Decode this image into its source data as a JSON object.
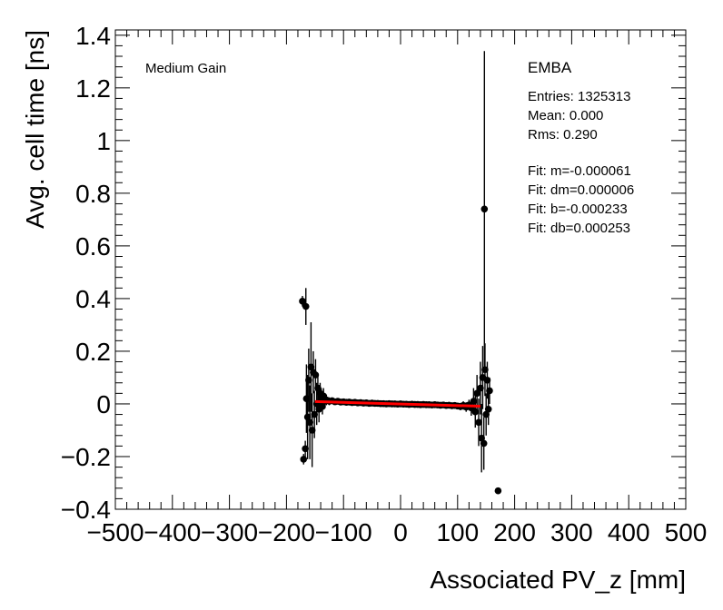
{
  "chart_data": {
    "type": "scatter",
    "title": "",
    "xlabel": "Associated PV_z [mm]",
    "ylabel": "Avg. cell time [ns]",
    "xlim": [
      -500,
      500
    ],
    "ylim": [
      -0.4,
      1.42
    ],
    "xticks": [
      -500,
      -400,
      -300,
      -200,
      -100,
      0,
      100,
      200,
      300,
      400,
      500
    ],
    "xtick_labels": [
      "−500",
      "−400",
      "−300",
      "−200",
      "−100",
      "0",
      "100",
      "200",
      "300",
      "400",
      "500"
    ],
    "yticks": [
      -0.4,
      -0.2,
      0,
      0.2,
      0.4,
      0.6,
      0.8,
      1,
      1.2,
      1.4
    ],
    "ytick_labels": [
      "−0.4",
      "−0.2",
      "0",
      "0.2",
      "0.4",
      "0.6",
      "0.8",
      "1",
      "1.2",
      "1.4"
    ],
    "grid": false,
    "legend": "none",
    "gain_label": "Medium Gain",
    "partition_label": "EMBA",
    "stats": [
      "Entries: 1325313",
      "Mean: 0.000",
      "Rms: 0.290"
    ],
    "fit_text": [
      "Fit: m=-0.000061",
      "Fit: dm=0.000006",
      "Fit: b=-0.000233",
      "Fit: db=0.000253"
    ],
    "fit_line": {
      "m": -6.1e-05,
      "b": -0.000233,
      "x_range": [
        -150,
        140
      ],
      "color": "#ff0000"
    },
    "marker_color": "#000000",
    "outliers": [
      {
        "x": -172,
        "y": 0.39,
        "err": 0.02
      },
      {
        "x": -166,
        "y": 0.37,
        "err": 0.07
      },
      {
        "x": -170,
        "y": -0.21,
        "err": 0.02
      },
      {
        "x": -167,
        "y": -0.17,
        "err": 0.03
      },
      {
        "x": 147,
        "y": 0.74,
        "err": 0.6
      },
      {
        "x": 171,
        "y": -0.33,
        "err": 0.01
      }
    ],
    "points": [
      {
        "x": -165,
        "y": 0.02,
        "err": 0.13
      },
      {
        "x": -163,
        "y": -0.05,
        "err": 0.16
      },
      {
        "x": -161,
        "y": 0.09,
        "err": 0.12
      },
      {
        "x": -159,
        "y": -0.07,
        "err": 0.14
      },
      {
        "x": -157,
        "y": 0.14,
        "err": 0.17
      },
      {
        "x": -155,
        "y": -0.1,
        "err": 0.14
      },
      {
        "x": -153,
        "y": 0.12,
        "err": 0.08
      },
      {
        "x": -151,
        "y": -0.04,
        "err": 0.09
      },
      {
        "x": -149,
        "y": 0.11,
        "err": 0.06
      },
      {
        "x": -147,
        "y": 0.0,
        "err": 0.08
      },
      {
        "x": -145,
        "y": 0.06,
        "err": 0.05
      },
      {
        "x": -143,
        "y": -0.02,
        "err": 0.05
      },
      {
        "x": -141,
        "y": 0.04,
        "err": 0.04
      },
      {
        "x": -139,
        "y": 0.02,
        "err": 0.04
      },
      {
        "x": -137,
        "y": -0.01,
        "err": 0.03
      },
      {
        "x": -135,
        "y": 0.03,
        "err": 0.03
      },
      {
        "x": -133,
        "y": 0.01,
        "err": 0.025
      },
      {
        "x": -130,
        "y": 0.015,
        "err": 0.02
      },
      {
        "x": -125,
        "y": 0.01,
        "err": 0.015
      },
      {
        "x": -120,
        "y": 0.012,
        "err": 0.012
      },
      {
        "x": -115,
        "y": 0.008,
        "err": 0.01
      },
      {
        "x": -110,
        "y": 0.01,
        "err": 0.01
      },
      {
        "x": -105,
        "y": 0.007,
        "err": 0.008
      },
      {
        "x": -100,
        "y": 0.008,
        "err": 0.008
      },
      {
        "x": -95,
        "y": 0.006,
        "err": 0.007
      },
      {
        "x": -90,
        "y": 0.007,
        "err": 0.007
      },
      {
        "x": -85,
        "y": 0.005,
        "err": 0.006
      },
      {
        "x": -80,
        "y": 0.006,
        "err": 0.006
      },
      {
        "x": -75,
        "y": 0.004,
        "err": 0.006
      },
      {
        "x": -70,
        "y": 0.005,
        "err": 0.005
      },
      {
        "x": -65,
        "y": 0.003,
        "err": 0.005
      },
      {
        "x": -60,
        "y": 0.004,
        "err": 0.005
      },
      {
        "x": -55,
        "y": 0.002,
        "err": 0.005
      },
      {
        "x": -50,
        "y": 0.003,
        "err": 0.005
      },
      {
        "x": -45,
        "y": 0.002,
        "err": 0.005
      },
      {
        "x": -40,
        "y": 0.002,
        "err": 0.005
      },
      {
        "x": -35,
        "y": 0.001,
        "err": 0.005
      },
      {
        "x": -30,
        "y": 0.001,
        "err": 0.005
      },
      {
        "x": -25,
        "y": 0.0,
        "err": 0.005
      },
      {
        "x": -20,
        "y": 0.001,
        "err": 0.005
      },
      {
        "x": -15,
        "y": 0.0,
        "err": 0.005
      },
      {
        "x": -10,
        "y": 0.0,
        "err": 0.005
      },
      {
        "x": -5,
        "y": -0.001,
        "err": 0.005
      },
      {
        "x": 0,
        "y": 0.0,
        "err": 0.005
      },
      {
        "x": 5,
        "y": -0.001,
        "err": 0.005
      },
      {
        "x": 10,
        "y": -0.001,
        "err": 0.005
      },
      {
        "x": 15,
        "y": -0.002,
        "err": 0.005
      },
      {
        "x": 20,
        "y": -0.001,
        "err": 0.005
      },
      {
        "x": 25,
        "y": -0.002,
        "err": 0.005
      },
      {
        "x": 30,
        "y": -0.002,
        "err": 0.005
      },
      {
        "x": 35,
        "y": -0.003,
        "err": 0.005
      },
      {
        "x": 40,
        "y": -0.002,
        "err": 0.005
      },
      {
        "x": 45,
        "y": -0.003,
        "err": 0.006
      },
      {
        "x": 50,
        "y": -0.003,
        "err": 0.006
      },
      {
        "x": 55,
        "y": -0.004,
        "err": 0.006
      },
      {
        "x": 60,
        "y": -0.003,
        "err": 0.006
      },
      {
        "x": 65,
        "y": -0.004,
        "err": 0.007
      },
      {
        "x": 70,
        "y": -0.005,
        "err": 0.007
      },
      {
        "x": 75,
        "y": -0.004,
        "err": 0.008
      },
      {
        "x": 80,
        "y": -0.006,
        "err": 0.008
      },
      {
        "x": 85,
        "y": -0.005,
        "err": 0.009
      },
      {
        "x": 90,
        "y": -0.007,
        "err": 0.01
      },
      {
        "x": 95,
        "y": -0.006,
        "err": 0.011
      },
      {
        "x": 100,
        "y": -0.008,
        "err": 0.012
      },
      {
        "x": 105,
        "y": -0.01,
        "err": 0.014
      },
      {
        "x": 110,
        "y": -0.006,
        "err": 0.016
      },
      {
        "x": 115,
        "y": -0.012,
        "err": 0.018
      },
      {
        "x": 120,
        "y": -0.004,
        "err": 0.02
      },
      {
        "x": 124,
        "y": -0.015,
        "err": 0.03
      },
      {
        "x": 128,
        "y": 0.01,
        "err": 0.05
      },
      {
        "x": 131,
        "y": -0.03,
        "err": 0.06
      },
      {
        "x": 134,
        "y": 0.04,
        "err": 0.07
      },
      {
        "x": 137,
        "y": -0.07,
        "err": 0.09
      },
      {
        "x": 140,
        "y": 0.06,
        "err": 0.1
      },
      {
        "x": 142,
        "y": -0.13,
        "err": 0.13
      },
      {
        "x": 144,
        "y": 0.1,
        "err": 0.12
      },
      {
        "x": 146,
        "y": -0.15,
        "err": 0.1
      },
      {
        "x": 148,
        "y": 0.13,
        "err": 0.1
      },
      {
        "x": 150,
        "y": -0.04,
        "err": 0.08
      },
      {
        "x": 152,
        "y": 0.09,
        "err": 0.07
      },
      {
        "x": 154,
        "y": -0.02,
        "err": 0.06
      },
      {
        "x": 156,
        "y": 0.05,
        "err": 0.05
      }
    ]
  }
}
